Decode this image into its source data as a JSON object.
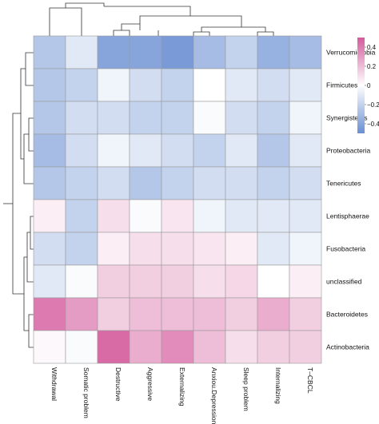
{
  "chart_data": {
    "type": "heatmap",
    "title": "",
    "rows": [
      "Verrucomicrobia",
      "Firmicutes",
      "Synergistetes",
      "Proteobacteria",
      "Tenericutes",
      "Lentisphaerae",
      "Fusobacteria",
      "unclassified",
      "Bacteroidetes",
      "Actinobacteria"
    ],
    "columns": [
      "Withdrawal",
      "Somatic problem",
      "Destructive",
      "Aggressive",
      "Externalizing",
      "Anxiou.Depression",
      "Sleep problem",
      "Internalizing",
      "T–CBCL"
    ],
    "values": [
      [
        -0.25,
        -0.1,
        -0.4,
        -0.4,
        -0.45,
        -0.3,
        -0.2,
        -0.35,
        -0.3
      ],
      [
        -0.25,
        -0.2,
        -0.05,
        -0.15,
        -0.2,
        0.0,
        -0.1,
        -0.15,
        -0.1
      ],
      [
        -0.25,
        -0.15,
        -0.15,
        -0.2,
        -0.2,
        -0.02,
        -0.15,
        -0.2,
        -0.05
      ],
      [
        -0.3,
        -0.15,
        -0.05,
        -0.1,
        -0.15,
        -0.2,
        -0.1,
        -0.25,
        -0.1
      ],
      [
        -0.25,
        -0.2,
        -0.15,
        -0.25,
        -0.2,
        -0.15,
        -0.15,
        -0.2,
        -0.15
      ],
      [
        0.05,
        -0.2,
        0.1,
        -0.02,
        0.08,
        -0.05,
        -0.1,
        -0.1,
        -0.1
      ],
      [
        -0.15,
        -0.2,
        0.05,
        0.1,
        0.1,
        0.08,
        0.05,
        -0.1,
        -0.05
      ],
      [
        -0.1,
        -0.02,
        0.15,
        0.15,
        0.15,
        0.1,
        0.12,
        0.0,
        0.05
      ],
      [
        0.4,
        0.3,
        0.15,
        0.2,
        0.2,
        0.2,
        0.15,
        0.25,
        0.15
      ],
      [
        0.02,
        -0.02,
        0.45,
        0.25,
        0.35,
        0.2,
        0.1,
        0.15,
        0.15
      ]
    ],
    "color_scale": {
      "min": -0.5,
      "max": 0.5,
      "low_color": "#6a8fd2",
      "mid_color": "#ffffff",
      "high_color": "#d45a9c",
      "ticks": [
        0.4,
        0.2,
        0,
        -0.2,
        -0.4
      ],
      "tick_labels": [
        "0.4",
        "0.2",
        "0",
        "−0.2",
        "−0.4"
      ]
    },
    "legend_position": "top-right",
    "row_dendrogram": "left",
    "column_dendrogram": "top"
  }
}
